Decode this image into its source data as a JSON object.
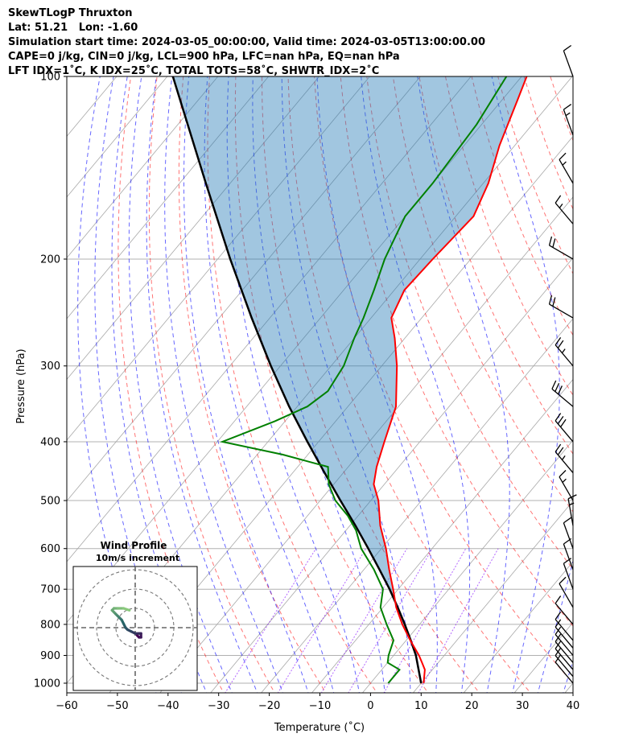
{
  "header": {
    "line1": "SkewTLogP Thruxton",
    "line2": "Lat: 51.21   Lon: -1.60",
    "line3": "Simulation start time: 2024-03-05_00:00:00, Valid time: 2024-03-05T13:00:00.00",
    "line4": "CAPE=0 j/kg, CIN=0 j/kg, LCL=900 hPa, LFC=nan hPa, EQ=nan hPa",
    "line5": "LFT IDX=1˚C, K IDX=25˚C, TOTAL TOTS=58˚C, SHWTR_IDX=2˚C"
  },
  "chart_data": {
    "type": "line",
    "xlabel": "Temperature (˚C)",
    "ylabel": "Pressure (hPa)",
    "xlim": [
      -60,
      40
    ],
    "ylim": [
      1050,
      100
    ],
    "yscale": "log",
    "x_ticks": [
      -60,
      -50,
      -40,
      -30,
      -20,
      -10,
      0,
      10,
      20,
      30,
      40
    ],
    "x_tick_labels": [
      "−60",
      "−50",
      "−40",
      "−30",
      "−20",
      "−10",
      "0",
      "10",
      "20",
      "30",
      "40"
    ],
    "y_ticks": [
      1000,
      900,
      800,
      700,
      600,
      500,
      400,
      300,
      200,
      100
    ],
    "y_tick_labels": [
      "1000",
      "900",
      "800",
      "700",
      "600",
      "500",
      "400",
      "300",
      "200",
      "100"
    ],
    "colors": {
      "temperature": "#ff0000",
      "dewpoint": "#008000",
      "parcel": "#000000",
      "cape_fill": "#1f77b4",
      "dry_adiabats": "#ff0000",
      "moist_adiabats": "#0000ff",
      "mixing_ratio": "#8000ff",
      "isotherms": "#808080"
    },
    "temperature": {
      "pressure": [
        1000,
        950,
        925,
        900,
        850,
        800,
        750,
        700,
        650,
        600,
        550,
        500,
        470,
        440,
        400,
        350,
        300,
        270,
        250,
        225,
        200,
        170,
        150,
        130,
        110,
        100
      ],
      "values": [
        10.5,
        8.5,
        6.8,
        5.0,
        0.8,
        -3.4,
        -7.4,
        -11.0,
        -15.0,
        -19.1,
        -24.0,
        -28.5,
        -32.1,
        -34.4,
        -37.0,
        -40.5,
        -47.0,
        -52.0,
        -56.0,
        -58.0,
        -57.5,
        -56.5,
        -59.0,
        -63.0,
        -66.8,
        -69.0
      ]
    },
    "dewpoint": {
      "pressure": [
        1000,
        950,
        925,
        900,
        850,
        800,
        750,
        700,
        650,
        600,
        560,
        530,
        500,
        470,
        440,
        420,
        400,
        370,
        350,
        330,
        300,
        270,
        250,
        225,
        200,
        170,
        150,
        120,
        100
      ],
      "values": [
        3.5,
        3.5,
        0.0,
        -1.0,
        -2.5,
        -6.5,
        -10.5,
        -13.0,
        -18.0,
        -24.0,
        -28.0,
        -32.0,
        -37.0,
        -41.0,
        -44.0,
        -55.0,
        -69.0,
        -62.0,
        -58.0,
        -56.5,
        -57.5,
        -60.0,
        -61.5,
        -64.0,
        -67.0,
        -70.0,
        -70.0,
        -71.0,
        -73.0
      ]
    },
    "parcel": {
      "pressure": [
        1000,
        900,
        850,
        800,
        750,
        700,
        650,
        600,
        550,
        500,
        450,
        400,
        350,
        300,
        250,
        200,
        150,
        100
      ],
      "values": [
        10.0,
        4.4,
        0.9,
        -2.9,
        -7.1,
        -11.7,
        -16.9,
        -22.6,
        -28.9,
        -36.0,
        -43.7,
        -52.2,
        -61.6,
        -71.9,
        -83.6,
        -97.5,
        -114.8,
        -138.9
      ]
    },
    "cape_fill_label": "",
    "hodograph": {
      "title": "Wind Profile",
      "subtitle": "10m/s increment",
      "rings_mps": [
        10,
        20,
        30
      ],
      "u": [
        1,
        2,
        3,
        3,
        2,
        0,
        -2,
        -4,
        -5,
        -6,
        -7,
        -8,
        -9,
        -10,
        -11,
        -12,
        -11,
        -9,
        -6,
        -3
      ],
      "v": [
        -4,
        -5,
        -5,
        -3,
        -3,
        -3,
        -2,
        -1,
        0,
        2,
        4,
        5,
        6,
        7,
        8,
        9,
        10,
        10,
        10,
        9
      ]
    },
    "wind_barbs": {
      "pressure": [
        1000,
        975,
        950,
        925,
        900,
        875,
        850,
        800,
        750,
        700,
        650,
        600,
        550,
        500,
        450,
        400,
        350,
        300,
        250,
        200,
        175,
        150,
        125,
        100
      ],
      "speed_kt": [
        10,
        10,
        10,
        10,
        10,
        10,
        10,
        10,
        10,
        10,
        10,
        10,
        15,
        15,
        25,
        30,
        30,
        25,
        20,
        20,
        15,
        15,
        15,
        10
      ],
      "direction_deg": [
        320,
        320,
        320,
        320,
        320,
        320,
        320,
        320,
        330,
        340,
        340,
        340,
        350,
        330,
        320,
        320,
        310,
        320,
        300,
        300,
        320,
        330,
        340,
        340
      ]
    }
  }
}
